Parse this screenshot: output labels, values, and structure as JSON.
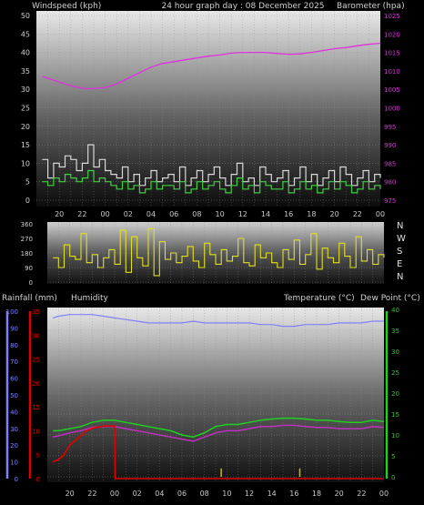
{
  "header": {
    "left_label": "Windspeed (kph)",
    "center_title": "24 hour graph day : 08 December 2025",
    "right_label": "Barometer (hpa)"
  },
  "direction_labels": [
    "N",
    "W",
    "S",
    "E",
    "N"
  ],
  "lower_header": {
    "rain_label": "Rainfall (mm)",
    "humidity_label": "Humidity",
    "temp_label": "Temperature (°C)",
    "dew_label": "Dew Point (°C)"
  },
  "colors": {
    "wind_gust": "#d8d8d8",
    "wind_avg": "#40d040",
    "barometer": "#e030e0",
    "direction": "#e0e020",
    "humidity": "#8080ff",
    "rainfall": "#e00000",
    "temperature": "#20d020",
    "dew_point": "#c030c0",
    "rain_rate": "#c8c000"
  },
  "chart_data": [
    {
      "type": "line",
      "title": "24 hour graph day : 08 December 2025",
      "x_ticks": [
        "20",
        "22",
        "00",
        "02",
        "04",
        "06",
        "08",
        "10",
        "12",
        "14",
        "16",
        "18",
        "20",
        "22",
        "00"
      ],
      "y_left": {
        "label": "Windspeed (kph)",
        "ylim": [
          0,
          50
        ],
        "ticks": [
          0,
          5,
          10,
          15,
          20,
          25,
          30,
          35,
          40,
          45,
          50
        ]
      },
      "y_right": {
        "label": "Barometer (hpa)",
        "ylim": [
          972,
          1025
        ],
        "ticks": [
          975,
          980,
          985,
          990,
          995,
          1000,
          1005,
          1010,
          1015,
          1020,
          1025
        ]
      },
      "grid": true,
      "series": [
        {
          "axis": "left",
          "x": [
            18.5,
            19,
            19.5,
            20,
            20.5,
            21,
            21.5,
            22,
            22.5,
            23,
            23.5,
            24,
            24.5,
            25,
            25.5,
            26,
            26.5,
            27,
            27.5,
            28,
            28.5,
            29,
            29.5,
            30,
            30.5,
            31,
            31.5,
            32,
            32.5,
            33,
            33.5,
            34,
            34.5,
            35,
            35.5,
            36,
            36.5,
            37,
            37.5,
            38,
            38.5,
            39,
            39.5,
            40,
            40.5,
            41,
            41.5,
            42,
            42.5,
            43,
            43.5,
            44,
            44.5,
            45,
            45.5,
            46,
            46.5,
            47,
            47.5,
            48
          ],
          "values": [
            11,
            6,
            10,
            9,
            12,
            11,
            8,
            10,
            15,
            9,
            11,
            8,
            7,
            6,
            9,
            5,
            7,
            4,
            6,
            8,
            5,
            6,
            7,
            5,
            9,
            4,
            6,
            8,
            5,
            7,
            9,
            6,
            4,
            7,
            10,
            5,
            6,
            4,
            9,
            7,
            5,
            6,
            8,
            4,
            6,
            9,
            5,
            7,
            4,
            6,
            8,
            5,
            9,
            7,
            4,
            6,
            8,
            5,
            7,
            6
          ]
        },
        {
          "axis": "left",
          "x": [
            18.5,
            19,
            19.5,
            20,
            20.5,
            21,
            21.5,
            22,
            22.5,
            23,
            23.5,
            24,
            24.5,
            25,
            25.5,
            26,
            26.5,
            27,
            27.5,
            28,
            28.5,
            29,
            29.5,
            30,
            30.5,
            31,
            31.5,
            32,
            32.5,
            33,
            33.5,
            34,
            34.5,
            35,
            35.5,
            36,
            36.5,
            37,
            37.5,
            38,
            38.5,
            39,
            39.5,
            40,
            40.5,
            41,
            41.5,
            42,
            42.5,
            43,
            43.5,
            44,
            44.5,
            45,
            45.5,
            46,
            46.5,
            47,
            47.5,
            48
          ],
          "values": [
            5,
            4,
            6,
            5,
            7,
            6,
            5,
            6,
            8,
            5,
            6,
            5,
            4,
            3,
            5,
            3,
            4,
            2,
            3,
            5,
            3,
            4,
            4,
            3,
            5,
            2,
            3,
            5,
            3,
            4,
            5,
            3,
            2,
            4,
            6,
            3,
            4,
            2,
            5,
            4,
            3,
            3,
            5,
            2,
            3,
            5,
            3,
            4,
            2,
            3,
            5,
            3,
            5,
            4,
            2,
            3,
            5,
            3,
            4,
            3
          ]
        },
        {
          "axis": "right",
          "x": [
            18.5,
            19,
            20,
            21,
            22,
            23,
            24,
            25,
            26,
            27,
            28,
            29,
            30,
            31,
            32,
            33,
            34,
            35,
            36,
            37,
            38,
            39,
            40,
            41,
            42,
            43,
            44,
            45,
            46,
            47,
            48
          ],
          "values": [
            1008.5,
            1008,
            1007,
            1006,
            1005.3,
            1005.2,
            1005.5,
            1006.5,
            1008,
            1009.5,
            1011,
            1012,
            1012.5,
            1013,
            1013.5,
            1014,
            1014.3,
            1014.8,
            1015,
            1015,
            1015,
            1014.7,
            1014.5,
            1014.6,
            1015,
            1015.5,
            1016,
            1016.3,
            1016.8,
            1017.2,
            1017.5
          ]
        }
      ]
    },
    {
      "type": "line",
      "x_ticks": [
        "20",
        "22",
        "00",
        "02",
        "04",
        "06",
        "08",
        "10",
        "12",
        "14",
        "16",
        "18",
        "20",
        "22",
        "00"
      ],
      "y_left": {
        "ylim": [
          0,
          360
        ],
        "ticks": [
          0,
          90,
          180,
          270,
          360
        ]
      },
      "grid": true,
      "series": [
        {
          "x": [
            18.5,
            19,
            19.5,
            20,
            20.5,
            21,
            21.5,
            22,
            22.5,
            23,
            23.5,
            24,
            24.5,
            25,
            25.5,
            26,
            26.5,
            27,
            27.5,
            28,
            28.5,
            29,
            29.5,
            30,
            30.5,
            31,
            31.5,
            32,
            32.5,
            33,
            33.5,
            34,
            34.5,
            35,
            35.5,
            36,
            36.5,
            37,
            37.5,
            38,
            38.5,
            39,
            39.5,
            40,
            40.5,
            41,
            41.5,
            42,
            42.5,
            43,
            43.5,
            44,
            44.5,
            45,
            45.5,
            46,
            46.5,
            47,
            47.5,
            48
          ],
          "values": [
            150,
            90,
            230,
            160,
            140,
            300,
            120,
            170,
            90,
            150,
            200,
            110,
            320,
            60,
            280,
            150,
            100,
            330,
            40,
            250,
            140,
            180,
            120,
            160,
            220,
            130,
            90,
            240,
            170,
            110,
            200,
            130,
            160,
            270,
            120,
            100,
            230,
            150,
            180,
            120,
            90,
            200,
            140,
            260,
            110,
            170,
            300,
            80,
            210,
            150,
            120,
            240,
            160,
            90,
            280,
            130,
            200,
            110,
            170,
            150
          ]
        }
      ]
    },
    {
      "type": "line",
      "x_ticks": [
        "20",
        "22",
        "00",
        "02",
        "04",
        "06",
        "08",
        "10",
        "12",
        "14",
        "16",
        "18",
        "20",
        "22",
        "00"
      ],
      "y_left_outer": {
        "label": "Rainfall (mm)",
        "ylim": [
          0,
          100
        ],
        "ticks": [
          0,
          10,
          20,
          30,
          40,
          50,
          60,
          70,
          80,
          90,
          100
        ]
      },
      "y_left_inner": {
        "label": "Humidity",
        "ylim": [
          0,
          35
        ],
        "ticks": [
          0,
          5,
          10,
          15,
          20,
          25,
          30,
          35
        ]
      },
      "y_right": {
        "label": "Temperature (°C) Dew Point (°C)",
        "ylim": [
          -2,
          40
        ],
        "ticks": [
          0,
          5,
          10,
          15,
          20,
          25,
          30,
          35,
          40
        ]
      },
      "grid": true,
      "series": [
        {
          "axis": "left_outer",
          "x": [
            18.5,
            19,
            20,
            21,
            22,
            23,
            24,
            25,
            26,
            27,
            28,
            29,
            30,
            31,
            32,
            33,
            34,
            35,
            36,
            37,
            38,
            39,
            40,
            41,
            42,
            43,
            44,
            45,
            46,
            47,
            48
          ],
          "values": [
            96,
            97,
            98,
            98,
            98,
            97,
            96,
            95,
            94,
            93,
            93,
            93,
            93,
            94,
            93,
            93,
            93,
            93,
            93,
            92,
            92,
            91,
            91,
            92,
            92,
            92,
            93,
            93,
            93,
            94,
            94
          ]
        },
        {
          "axis": "left_inner",
          "x": [
            18.5,
            19,
            19.5,
            20,
            20.5,
            21,
            21.5,
            22,
            23,
            24,
            24.05,
            48
          ],
          "values": [
            3.5,
            4,
            5,
            7,
            8,
            9,
            10,
            10.5,
            11,
            11,
            0,
            0
          ]
        },
        {
          "axis": "right",
          "x": [
            18.5,
            19,
            20,
            21,
            22,
            23,
            24,
            25,
            26,
            27,
            28,
            29,
            30,
            31,
            32,
            33,
            34,
            35,
            36,
            37,
            38,
            39,
            40,
            41,
            42,
            43,
            44,
            45,
            46,
            47,
            48
          ],
          "values": [
            11,
            11,
            11.5,
            12,
            13,
            13.5,
            13.5,
            13,
            12.5,
            12,
            11.5,
            11,
            10,
            9.5,
            10.5,
            12,
            12.5,
            12.5,
            13,
            13.5,
            13.8,
            14,
            14,
            13.8,
            13.5,
            13.5,
            13.2,
            13,
            13,
            13.5,
            13.2
          ]
        },
        {
          "axis": "right",
          "x": [
            18.5,
            19,
            20,
            21,
            22,
            23,
            24,
            25,
            26,
            27,
            28,
            29,
            30,
            31,
            32,
            33,
            34,
            35,
            36,
            37,
            38,
            39,
            40,
            41,
            42,
            43,
            44,
            45,
            46,
            47,
            48
          ],
          "values": [
            9.5,
            9.8,
            10.5,
            11,
            11.8,
            12,
            12,
            11.5,
            11,
            10.5,
            10,
            9.5,
            9,
            8.5,
            9.5,
            10.5,
            11,
            11,
            11.5,
            12,
            12,
            12.3,
            12.3,
            12,
            11.8,
            11.8,
            11.5,
            11.5,
            11.5,
            12,
            11.8
          ]
        },
        {
          "axis": "right",
          "x": [
            33.5,
            40.5
          ],
          "values": [
            2,
            2
          ]
        }
      ]
    }
  ]
}
